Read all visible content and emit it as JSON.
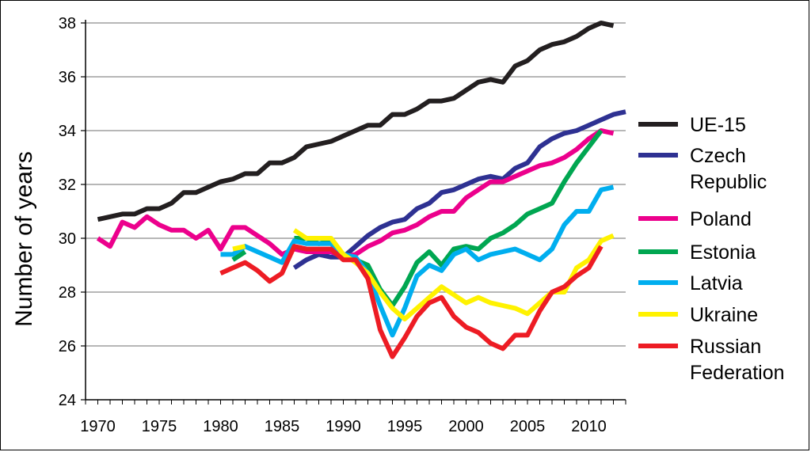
{
  "chart_data": {
    "type": "line",
    "title": "",
    "xlabel": "",
    "ylabel": "Number of years",
    "xlim": [
      1969,
      2013
    ],
    "ylim": [
      24,
      38
    ],
    "xticks": [
      1970,
      1975,
      1980,
      1985,
      1990,
      1995,
      2000,
      2005,
      2010
    ],
    "yticks": [
      24,
      26,
      28,
      30,
      32,
      34,
      36,
      38
    ],
    "grid": "horizontal",
    "legend_position": "right",
    "series": [
      {
        "name": "UE-15",
        "label_lines": [
          "UE-15"
        ],
        "color": "#231f20",
        "x": [
          1970,
          1971,
          1972,
          1973,
          1974,
          1975,
          1976,
          1977,
          1978,
          1979,
          1980,
          1981,
          1982,
          1983,
          1984,
          1985,
          1986,
          1987,
          1988,
          1989,
          1990,
          1991,
          1992,
          1993,
          1994,
          1995,
          1996,
          1997,
          1998,
          1999,
          2000,
          2001,
          2002,
          2003,
          2004,
          2005,
          2006,
          2007,
          2008,
          2009,
          2010,
          2011,
          2012
        ],
        "values": [
          30.7,
          30.8,
          30.9,
          30.9,
          31.1,
          31.1,
          31.3,
          31.7,
          31.7,
          31.9,
          32.1,
          32.2,
          32.4,
          32.4,
          32.8,
          32.8,
          33.0,
          33.4,
          33.5,
          33.6,
          33.8,
          34.0,
          34.2,
          34.2,
          34.6,
          34.6,
          34.8,
          35.1,
          35.1,
          35.2,
          35.5,
          35.8,
          35.9,
          35.8,
          36.4,
          36.6,
          37.0,
          37.2,
          37.3,
          37.5,
          37.8,
          38.0,
          37.9
        ]
      },
      {
        "name": "Czech Republic",
        "label_lines": [
          "Czech",
          "Republic"
        ],
        "color": "#2e3192",
        "x": [
          1986,
          1987,
          1988,
          1989,
          1990,
          1991,
          1992,
          1993,
          1994,
          1995,
          1996,
          1997,
          1998,
          1999,
          2000,
          2001,
          2002,
          2003,
          2004,
          2005,
          2006,
          2007,
          2008,
          2009,
          2010,
          2011,
          2012,
          2013
        ],
        "values": [
          28.9,
          29.2,
          29.4,
          29.3,
          29.3,
          29.7,
          30.1,
          30.4,
          30.6,
          30.7,
          31.1,
          31.3,
          31.7,
          31.8,
          32.0,
          32.2,
          32.3,
          32.2,
          32.6,
          32.8,
          33.4,
          33.7,
          33.9,
          34.0,
          34.2,
          34.4,
          34.6,
          34.7
        ]
      },
      {
        "name": "Poland",
        "label_lines": [
          "Poland"
        ],
        "color": "#ec008c",
        "x": [
          1970,
          1971,
          1972,
          1973,
          1974,
          1975,
          1976,
          1977,
          1978,
          1979,
          1980,
          1981,
          1982,
          1983,
          1984,
          1985,
          1986,
          1987,
          1988,
          1989,
          1990,
          1991,
          1992,
          1993,
          1994,
          1995,
          1996,
          1997,
          1998,
          1999,
          2000,
          2001,
          2002,
          2003,
          2004,
          2005,
          2006,
          2007,
          2008,
          2009,
          2010,
          2011,
          2012
        ],
        "values": [
          30.0,
          29.7,
          30.6,
          30.4,
          30.8,
          30.5,
          30.3,
          30.3,
          30.0,
          30.3,
          29.6,
          30.4,
          30.4,
          30.1,
          29.8,
          29.4,
          29.6,
          29.5,
          29.5,
          29.5,
          29.3,
          29.4,
          29.7,
          29.9,
          30.2,
          30.3,
          30.5,
          30.8,
          31.0,
          31.0,
          31.5,
          31.8,
          32.1,
          32.1,
          32.3,
          32.5,
          32.7,
          32.8,
          33.0,
          33.3,
          33.7,
          34.0,
          33.9
        ]
      },
      {
        "name": "Estonia",
        "label_lines": [
          "Estonia"
        ],
        "color": "#00a651",
        "x": [
          1981,
          1982,
          1983,
          1984,
          1985,
          1986,
          1987,
          1988,
          1989,
          1990,
          1991,
          1992,
          1993,
          1994,
          1995,
          1996,
          1997,
          1998,
          1999,
          2000,
          2001,
          2002,
          2003,
          2004,
          2005,
          2006,
          2007,
          2008,
          2009,
          2010,
          2011
        ],
        "values": [
          29.2,
          29.5,
          null,
          null,
          null,
          30.0,
          30.0,
          29.8,
          29.9,
          29.4,
          29.2,
          29.0,
          28.1,
          27.5,
          28.2,
          29.1,
          29.5,
          29.0,
          29.6,
          29.7,
          29.6,
          30.0,
          30.2,
          30.5,
          30.9,
          31.1,
          31.3,
          32.1,
          32.8,
          33.4,
          34.0
        ]
      },
      {
        "name": "Latvia",
        "label_lines": [
          "Latvia"
        ],
        "color": "#00aeef",
        "x": [
          1980,
          1981,
          1982,
          1983,
          1984,
          1985,
          1986,
          1987,
          1988,
          1989,
          1990,
          1991,
          1992,
          1993,
          1994,
          1995,
          1996,
          1997,
          1998,
          1999,
          2000,
          2001,
          2002,
          2003,
          2004,
          2005,
          2006,
          2007,
          2008,
          2009,
          2010,
          2011,
          2012
        ],
        "values": [
          29.4,
          29.4,
          29.7,
          29.5,
          29.3,
          29.1,
          29.9,
          29.8,
          29.8,
          29.8,
          29.4,
          29.3,
          28.7,
          27.5,
          26.4,
          27.4,
          28.6,
          29.0,
          28.8,
          29.4,
          29.6,
          29.2,
          29.4,
          29.5,
          29.6,
          29.4,
          29.2,
          29.6,
          30.5,
          31.0,
          31.0,
          31.8,
          31.9
        ]
      },
      {
        "name": "Ukraine",
        "label_lines": [
          "Ukraine"
        ],
        "color": "#fff200",
        "x": [
          1981,
          1982,
          1983,
          1984,
          1985,
          1986,
          1987,
          1988,
          1989,
          1990,
          1991,
          1992,
          1993,
          1994,
          1995,
          1996,
          1997,
          1998,
          1999,
          2000,
          2001,
          2002,
          2003,
          2004,
          2005,
          2006,
          2007,
          2008,
          2009,
          2010,
          2011,
          2012
        ],
        "values": [
          29.6,
          29.7,
          null,
          null,
          null,
          30.3,
          30.0,
          30.0,
          30.0,
          29.4,
          29.1,
          28.7,
          28.0,
          27.4,
          27.0,
          27.4,
          27.8,
          28.2,
          27.9,
          27.6,
          27.8,
          27.6,
          27.5,
          27.4,
          27.2,
          27.6,
          28.0,
          28.0,
          28.9,
          29.2,
          29.9,
          30.1
        ]
      },
      {
        "name": "Russian Federation",
        "label_lines": [
          "Russian",
          "Federation"
        ],
        "color": "#ed1c24",
        "x": [
          1980,
          1981,
          1982,
          1983,
          1984,
          1985,
          1986,
          1987,
          1988,
          1989,
          1990,
          1991,
          1992,
          1993,
          1994,
          1995,
          1996,
          1997,
          1998,
          1999,
          2000,
          2001,
          2002,
          2003,
          2004,
          2005,
          2006,
          2007,
          2008,
          2009,
          2010,
          2011
        ],
        "values": [
          28.7,
          28.9,
          29.1,
          28.8,
          28.4,
          28.7,
          29.7,
          29.6,
          29.6,
          29.6,
          29.2,
          29.2,
          28.5,
          26.6,
          25.6,
          26.3,
          27.1,
          27.6,
          27.8,
          27.1,
          26.7,
          26.5,
          26.1,
          25.9,
          26.4,
          26.4,
          27.3,
          28.0,
          28.2,
          28.6,
          28.9,
          29.7
        ]
      }
    ]
  }
}
